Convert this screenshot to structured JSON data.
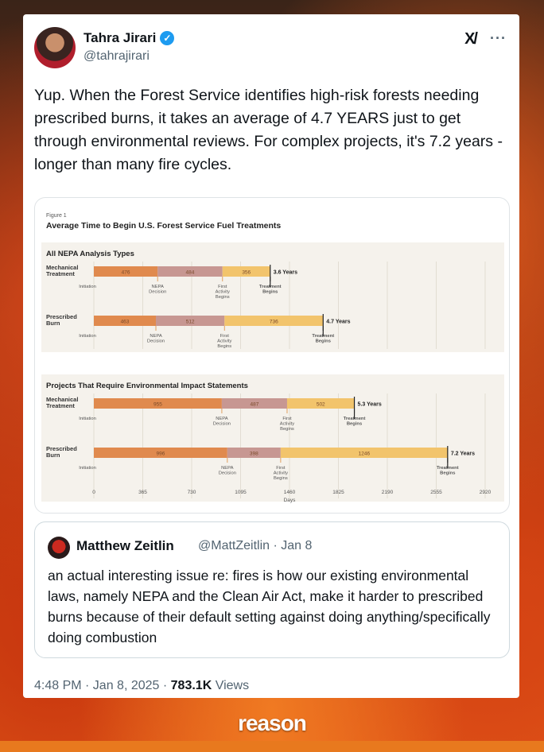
{
  "tweet": {
    "author_name": "Tahra Jirari",
    "author_handle": "@tahrajirari",
    "text": "Yup. When the Forest Service identifies high-risk forests needing prescribed burns, it takes an average of 4.7 YEARS just to get through environmental reviews. For complex projects, it's 7.2 years - longer than many fire cycles.",
    "timestamp": "4:48 PM · Jan 8, 2025 · ",
    "views_count": "783.1K",
    "views_label": " Views",
    "more_label": "···",
    "grok_label": "X/"
  },
  "quote": {
    "author_name": "Matthew Zeitlin",
    "meta": "@MattZeitlin · Jan 8",
    "text": "an actual interesting issue re: fires is how our existing environmental laws, namely NEPA and the Clean Air Act, make it harder to prescribed burns because of their default setting against doing anything/specifically doing combustion"
  },
  "brand": {
    "logo_text": "reason"
  },
  "colors": {
    "seg1": "#e08a4e",
    "seg2": "#c79792",
    "seg3": "#f2c46c",
    "panel": "#f5f2ec"
  },
  "chart_data": {
    "type": "bar",
    "figure_label": "Figure 1",
    "title": "Average Time to Begin U.S. Forest Service Fuel Treatments",
    "xlabel": "Days",
    "xlim": [
      0,
      2920
    ],
    "ticks": [
      "0",
      "365",
      "730",
      "1095",
      "1460",
      "1825",
      "2190",
      "2555",
      "2920"
    ],
    "milestones": [
      "Initiation",
      "NEPA Decision",
      "First Activity Begins",
      "Treatment Begins"
    ],
    "panels": [
      {
        "title": "All NEPA Analysis Types",
        "rows": [
          {
            "label": "Mechanical Treatment",
            "values": [
              476,
              484,
              356
            ],
            "total_label": "3.6 Years"
          },
          {
            "label": "Prescribed Burn",
            "values": [
              463,
              512,
              736
            ],
            "total_label": "4.7 Years"
          }
        ]
      },
      {
        "title": "Projects That Require Environmental Impact Statements",
        "rows": [
          {
            "label": "Mechanical Treatment",
            "values": [
              955,
              487,
              502
            ],
            "total_label": "5.3 Years"
          },
          {
            "label": "Prescribed Burn",
            "values": [
              996,
              398,
              1246
            ],
            "total_label": "7.2 Years"
          }
        ]
      }
    ]
  }
}
